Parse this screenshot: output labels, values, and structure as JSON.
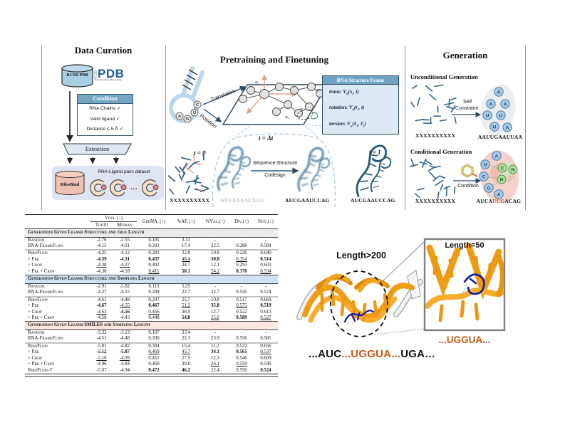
{
  "colors": {
    "divider": "#7c9cb4",
    "steel_header": "#74a7c4",
    "light_blue_fill": "#dce8f4",
    "cylinder_blue": "#a9cfe4",
    "cylinder_pink": "#efc0b2",
    "pdb_blue": "#1d5a9e",
    "segment_blue": "#2e5f80",
    "orange_rna": "#ef9c15",
    "ligand_blue": "#1717a6",
    "orange_text": "#c55a11",
    "sec_gray": "#ebebeb",
    "sec_blue": "#cfe0f1",
    "sec_pink": "#fbe5e1"
  },
  "curation": {
    "title": "Data Curation",
    "db_cylinder": "RCSB PDB",
    "logo": {
      "rcsb": "RCSB",
      "pdb": "PDB",
      "sub": "PROTEIN DATA BANK"
    },
    "condition": {
      "header": "Condition",
      "items": [
        "RNA Chains ✓",
        "Valid ligand ✓",
        "Distance ≤ 5 Å ✓"
      ]
    },
    "extraction": "Extraction",
    "dataset": {
      "db": "RiboBind",
      "caption": "RNA-Ligand pairs dataset",
      "dots": "..."
    }
  },
  "pretrain": {
    "title": "Pretraining and Finetuning",
    "translation": "Translation",
    "rotation": "Rotation",
    "nts": [
      "A",
      "G",
      "U",
      "C"
    ],
    "phi": [
      "φ₂",
      "φ₃",
      "φ₅",
      "φ₄",
      "φ₁"
    ],
    "frame": {
      "header": "RNA Structure Frame",
      "lines": [
        [
          {
            "t": "trans: "
          },
          {
            "t": "V",
            "v": 1
          },
          {
            "t": "θ",
            "sub": 1
          },
          {
            "t": "("
          },
          {
            "t": "x"
          },
          {
            "t": "t",
            "sub": 1
          },
          {
            "t": ", t)"
          }
        ],
        [
          {
            "t": "rotation: "
          },
          {
            "t": "V",
            "v": 1
          },
          {
            "t": "θ",
            "sub": 1
          },
          {
            "t": "("
          },
          {
            "t": "r"
          },
          {
            "t": "t",
            "sub": 1
          },
          {
            "t": ", t)"
          }
        ],
        [
          {
            "t": "torsion: "
          },
          {
            "t": "V",
            "v": 1
          },
          {
            "t": "φ",
            "sub": 1
          },
          {
            "t": "("
          },
          {
            "t": "x̂"
          },
          {
            "t": "1",
            "sub": 1
          },
          {
            "t": ", r̂"
          },
          {
            "t": "1",
            "sub": 1
          },
          {
            "t": ")"
          }
        ]
      ]
    },
    "t0": "t = 0",
    "tdt": "t = Δt",
    "t1": "t = 1",
    "codesign1": "Sequence-Structure",
    "codesign2": "Codesign",
    "seq0": "XXXXXXXXXX",
    "seq_noisy": "AXUXXAXCXGU",
    "seq_mid": "AUCGAAUCCAG",
    "seq1": "AUCGAAUCCAG"
  },
  "generation": {
    "title": "Generation",
    "uncond": {
      "heading": "Unconditional Generation",
      "input": "XXXXXXXXXX",
      "arrow1": "Self",
      "arrow2": "Constraint",
      "output": "AAUUGAAUUAA",
      "letters": [
        "A",
        "A",
        "A",
        "U",
        "U",
        "U",
        "A"
      ]
    },
    "cond": {
      "heading": "Conditional Generation",
      "input": "XXXXXXXXXX",
      "arrow": "Condition",
      "letters_blue": [
        "A",
        "U",
        "C",
        "G",
        "A"
      ],
      "letters_green": [
        "C",
        "N",
        "H"
      ],
      "output_parts": [
        {
          "t": "AUCA"
        },
        {
          "t": "UCG",
          "c": "#c55a11"
        },
        {
          "t": "ACAG"
        }
      ]
    }
  },
  "table": {
    "headers": {
      "vina": "Vina. (↓)",
      "top10": "Top10",
      "median": "Median",
      "gerna": "GerNA. (↑)",
      "af": "%AF. (↑)",
      "val": "%Val.(↑)",
      "div": "Div.(↑)",
      "nov": "Nov.(↓)"
    },
    "sections": [
      {
        "title": "Generation Given Ligand Structure and true Length",
        "bg": "#ebebeb",
        "rows": [
          {
            "label": "Random",
            "cells": [
              [
                "-2.76",
                ""
              ],
              [
                "-2.55",
                ""
              ],
              [
                "0.101",
                ""
              ],
              [
                "3.11",
                ""
              ],
              [
                "-",
                ""
              ],
              [
                "-",
                ""
              ],
              [
                "-",
                ""
              ]
            ]
          },
          {
            "label": "RNA-FrameFlow",
            "cells": [
              [
                "-4.15",
                ""
              ],
              [
                "-4.01",
                ""
              ],
              [
                "0.203",
                ""
              ],
              [
                "17.4",
                ""
              ],
              [
                "22.5",
                ""
              ],
              [
                "0.288",
                ""
              ],
              [
                "0.584",
                ""
              ]
            ]
          },
          {
            "label": "RiboFlow",
            "sep": true,
            "cells": [
              [
                "-4.25",
                ""
              ],
              [
                "-4.12",
                ""
              ],
              [
                "0.283",
                ""
              ],
              [
                "22.8",
                ""
              ],
              [
                "10.8",
                ""
              ],
              [
                "0.226",
                ""
              ],
              [
                "0.640",
                ""
              ]
            ]
          },
          {
            "label": "+ Pre",
            "cells": [
              [
                "-4.39",
                "b"
              ],
              [
                "-4.31",
                "b"
              ],
              [
                "0.437",
                "b"
              ],
              [
                "48.4",
                "u"
              ],
              [
                "30.8",
                "b"
              ],
              [
                "0.354",
                "u"
              ],
              [
                "0.514",
                "b"
              ]
            ]
          },
          {
            "label": "+ Crop",
            "cells": [
              [
                "-4.38",
                "u"
              ],
              [
                "-4.27",
                "u"
              ],
              [
                "0.402",
                ""
              ],
              [
                "34.7",
                ""
              ],
              [
                "12.1",
                ""
              ],
              [
                "0.293",
                ""
              ],
              [
                "0.603",
                ""
              ]
            ]
          },
          {
            "label": "+ Pre + Crop",
            "cells": [
              [
                "-4.30",
                ""
              ],
              [
                "-4.18",
                ""
              ],
              [
                "0.411",
                "u"
              ],
              [
                "50.1",
                "b"
              ],
              [
                "24.2",
                "u"
              ],
              [
                "0.376",
                "b"
              ],
              [
                "0.534",
                "u"
              ]
            ]
          }
        ]
      },
      {
        "title": "Generation Given Ligand Structure and Sampling Length",
        "bg": "#cfe0f1",
        "rows": [
          {
            "label": "Random",
            "cells": [
              [
                "-2.91",
                ""
              ],
              [
                "-2.82",
                ""
              ],
              [
                "0.113",
                ""
              ],
              [
                "5.25",
                ""
              ],
              [
                "-",
                ""
              ],
              [
                "-",
                ""
              ],
              [
                "-",
                ""
              ]
            ]
          },
          {
            "label": "RNA-FrameFlow",
            "cells": [
              [
                "-4.27",
                ""
              ],
              [
                "-4.15",
                ""
              ],
              [
                "0.209",
                ""
              ],
              [
                "22.7",
                ""
              ],
              [
                "22.7",
                ""
              ],
              [
                "0.545",
                ""
              ],
              [
                "0.574",
                ""
              ]
            ]
          },
          {
            "label": "RiboFlow",
            "sep": true,
            "cells": [
              [
                "-4.61",
                ""
              ],
              [
                "-4.48",
                ""
              ],
              [
                "0.297",
                ""
              ],
              [
                "25.7",
                ""
              ],
              [
                "10.8",
                ""
              ],
              [
                "0.517",
                ""
              ],
              [
                "0.669",
                ""
              ]
            ]
          },
          {
            "label": "+ Pre",
            "cells": [
              [
                "-4.67",
                "b"
              ],
              [
                "-4.55",
                "u"
              ],
              [
                "0.467",
                "b"
              ],
              [
                "51.2",
                "u"
              ],
              [
                "35.8",
                "b"
              ],
              [
                "0.575",
                "u"
              ],
              [
                "0.519",
                "b"
              ]
            ]
          },
          {
            "label": "+ Crop",
            "cells": [
              [
                "-4.63",
                "u"
              ],
              [
                "-4.56",
                "b"
              ],
              [
                "0.456",
                "u"
              ],
              [
                "38.9",
                ""
              ],
              [
                "12.7",
                ""
              ],
              [
                "0.522",
                ""
              ],
              [
                "0.613",
                ""
              ]
            ]
          },
          {
            "label": "+ Pre + Crop",
            "cells": [
              [
                "-4.58",
                ""
              ],
              [
                "-4.43",
                ""
              ],
              [
                "0.448",
                ""
              ],
              [
                "54.8",
                "b"
              ],
              [
                "25.6",
                "u"
              ],
              [
                "0.589",
                "b"
              ],
              [
                "0.527",
                "u"
              ]
            ]
          }
        ]
      },
      {
        "title": "Generation Given Ligand SMILES and Sampling Length",
        "bg": "#fbe5e1",
        "rows": [
          {
            "label": "Random",
            "cells": [
              [
                "-3.32",
                ""
              ],
              [
                "-3.13",
                ""
              ],
              [
                "0.107",
                ""
              ],
              [
                "3.54",
                ""
              ],
              [
                "-",
                ""
              ],
              [
                "-",
                ""
              ],
              [
                "-",
                ""
              ]
            ]
          },
          {
            "label": "RNA-FrameFlow",
            "cells": [
              [
                "-4.51",
                ""
              ],
              [
                "-4.48",
                ""
              ],
              [
                "0.200",
                ""
              ],
              [
                "22.3",
                ""
              ],
              [
                "23.9",
                ""
              ],
              [
                "0.556",
                ""
              ],
              [
                "0.581",
                ""
              ]
            ]
          },
          {
            "label": "RiboFlow",
            "sep": true,
            "cells": [
              [
                "-5.01",
                ""
              ],
              [
                "-4.82",
                ""
              ],
              [
                "0.304",
                ""
              ],
              [
                "15.4",
                ""
              ],
              [
                "11.2",
                ""
              ],
              [
                "0.522",
                ""
              ],
              [
                "0.656",
                ""
              ]
            ]
          },
          {
            "label": "+ Pre",
            "cells": [
              [
                "-5.12",
                "b"
              ],
              [
                "-5.07",
                "b"
              ],
              [
                "0.469",
                "u"
              ],
              [
                "45.7",
                "u"
              ],
              [
                "34.1",
                "b"
              ],
              [
                "0.561",
                "b"
              ],
              [
                "0.537",
                "u"
              ]
            ]
          },
          {
            "label": "+ Crop",
            "cells": [
              [
                "-5.10",
                "u"
              ],
              [
                "-4.99",
                "u"
              ],
              [
                "0.451",
                ""
              ],
              [
                "27.9",
                ""
              ],
              [
                "12.3",
                ""
              ],
              [
                "0.546",
                ""
              ],
              [
                "0.609",
                ""
              ]
            ]
          },
          {
            "label": "+ Pre + Crop",
            "cells": [
              [
                "-4.96",
                ""
              ],
              [
                "-4.84",
                ""
              ],
              [
                "0.460",
                ""
              ],
              [
                "39.8",
                ""
              ],
              [
                "26.1",
                "u"
              ],
              [
                "0.559",
                "u"
              ],
              [
                "0.540",
                ""
              ]
            ]
          },
          {
            "label": "RiboFlow-T",
            "cells": [
              [
                "-5.07",
                ""
              ],
              [
                "-4.94",
                ""
              ],
              [
                "0.472",
                "b"
              ],
              [
                "46.2",
                "b"
              ],
              [
                "22.4",
                ""
              ],
              [
                "0.550",
                ""
              ],
              [
                "0.524",
                "b"
              ]
            ]
          }
        ]
      }
    ]
  },
  "structures": {
    "len_left": "Length>200",
    "len_right": "Length=50",
    "uggua_parts": [
      {
        "t": "...UGGUA...",
        "c": "#c55a11"
      }
    ],
    "seq_parts": [
      {
        "t": "...AUC"
      },
      {
        "t": "...UGGUA...",
        "c": "#c55a11"
      },
      {
        "t": "UGA…"
      }
    ]
  }
}
